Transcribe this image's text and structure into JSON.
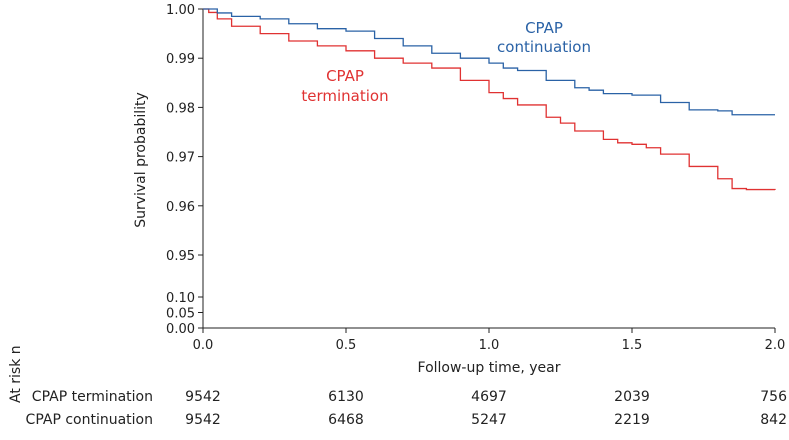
{
  "chart_data": {
    "type": "line",
    "title": "",
    "xlabel": "Follow-up time, year",
    "ylabel": "Survival probability",
    "xlim": [
      0,
      2
    ],
    "x_ticks": [
      "0.0",
      "0.5",
      "1.0",
      "1.5",
      "2.0"
    ],
    "y_ticks_upper": [
      "1.00",
      "0.99",
      "0.98",
      "0.97",
      "0.96",
      "0.95"
    ],
    "y_ticks_lower": [
      "0.10",
      "0.05",
      "0.00"
    ],
    "y_axis_note": "broken axis: 0.95–1.00 segment above, 0.00–0.10 segment below",
    "series": [
      {
        "name": "CPAP termination",
        "label_lines": [
          "CPAP",
          "termination"
        ],
        "color": "#e03232",
        "x": [
          0,
          0.02,
          0.05,
          0.1,
          0.2,
          0.3,
          0.4,
          0.5,
          0.6,
          0.7,
          0.8,
          0.9,
          1.0,
          1.05,
          1.1,
          1.2,
          1.25,
          1.3,
          1.4,
          1.45,
          1.5,
          1.55,
          1.6,
          1.7,
          1.8,
          1.85,
          1.9,
          2.0
        ],
        "values": [
          1.0,
          0.9993,
          0.998,
          0.9965,
          0.995,
          0.9935,
          0.9925,
          0.9915,
          0.99,
          0.989,
          0.988,
          0.9855,
          0.983,
          0.9818,
          0.9805,
          0.978,
          0.9768,
          0.9752,
          0.9735,
          0.9728,
          0.9725,
          0.9718,
          0.9705,
          0.968,
          0.9655,
          0.9635,
          0.9633,
          0.9632
        ]
      },
      {
        "name": "CPAP continuation",
        "label_lines": [
          "CPAP",
          "continuation"
        ],
        "color": "#2a62a6",
        "x": [
          0,
          0.05,
          0.1,
          0.2,
          0.3,
          0.4,
          0.5,
          0.6,
          0.7,
          0.8,
          0.9,
          1.0,
          1.05,
          1.1,
          1.2,
          1.3,
          1.35,
          1.4,
          1.5,
          1.6,
          1.7,
          1.8,
          1.85,
          1.9,
          2.0
        ],
        "values": [
          1.0,
          0.9992,
          0.9985,
          0.998,
          0.997,
          0.996,
          0.9955,
          0.994,
          0.9925,
          0.991,
          0.99,
          0.989,
          0.988,
          0.9875,
          0.9855,
          0.984,
          0.9835,
          0.9828,
          0.9825,
          0.981,
          0.9795,
          0.9793,
          0.9785,
          0.9785,
          0.9785
        ]
      }
    ]
  },
  "at_risk": {
    "title": "At risk n",
    "time_points": [
      "0.0",
      "0.5",
      "1.0",
      "1.5",
      "2.0"
    ],
    "rows": [
      {
        "name": "CPAP termination",
        "values": [
          "9542",
          "6130",
          "4697",
          "2039",
          "756"
        ]
      },
      {
        "name": "CPAP continuation",
        "values": [
          "9542",
          "6468",
          "5247",
          "2219",
          "842"
        ]
      }
    ]
  }
}
